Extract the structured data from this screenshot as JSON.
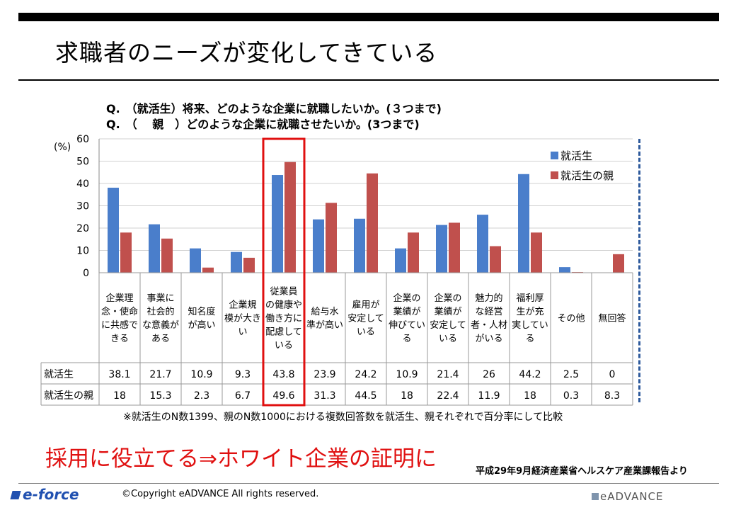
{
  "slide_title": "求職者のニーズが変化してきている",
  "question_1": "Q.　（就活生）将来、どのような企業に就職したいか。(３つまで)",
  "question_2": "Q.　（　 親　）どのような企業に就職させたいか。(3つまで)",
  "note": "※就活生のN数1399、親のN数1000における複数回答数を就活生、親それぞれで百分率にして比較",
  "callout": "採用に役立てる⇒ホワイト企業の証明に",
  "source": "平成29年9月経済産業省ヘルスケア産業課報告より",
  "copyright": "©Copyright  eADVANCE  All rights reserved.",
  "footer_logo_left": "e-force",
  "footer_logo_right": "eADVANCE",
  "colors": {
    "student": "#4a7ecb",
    "parent": "#c0504d",
    "highlight": "#e01010"
  },
  "chart_data": {
    "type": "bar",
    "ylabel": "(%)",
    "ylim": [
      0,
      60
    ],
    "yticks": [
      "0",
      "10",
      "20",
      "30",
      "40",
      "50",
      "60"
    ],
    "categories": [
      [
        "企業理",
        "念・使命",
        "に共感で",
        "きる"
      ],
      [
        "事業に",
        "社会的",
        "な意義が",
        "ある"
      ],
      [
        "知名度",
        "が高い"
      ],
      [
        "企業規",
        "模が大き",
        "い"
      ],
      [
        "従業員",
        "の健康や",
        "働き方に",
        "配慮して",
        "いる"
      ],
      [
        "給与水",
        "準が高い"
      ],
      [
        "雇用が",
        "安定して",
        "いる"
      ],
      [
        "企業の",
        "業績が",
        "伸びてい",
        "る"
      ],
      [
        "企業の",
        "業績が",
        "安定して",
        "いる"
      ],
      [
        "魅力的",
        "な経営",
        "者・人材",
        "がいる"
      ],
      [
        "福利厚",
        "生が充",
        "実してい",
        "る"
      ],
      [
        "その他"
      ],
      [
        "無回答"
      ]
    ],
    "series": [
      {
        "name": "就活生",
        "values": [
          38.1,
          21.7,
          10.9,
          9.3,
          43.8,
          23.9,
          24.2,
          10.9,
          21.4,
          26,
          44.2,
          2.5,
          0
        ],
        "labels": [
          "38.1",
          "21.7",
          "10.9",
          "9.3",
          "43.8",
          "23.9",
          "24.2",
          "10.9",
          "21.4",
          "26",
          "44.2",
          "2.5",
          "0"
        ]
      },
      {
        "name": "就活生の親",
        "values": [
          18,
          15.3,
          2.3,
          6.7,
          49.6,
          31.3,
          44.5,
          18,
          22.4,
          11.9,
          18,
          0.3,
          8.3
        ],
        "labels": [
          "18",
          "15.3",
          "2.3",
          "6.7",
          "49.6",
          "31.3",
          "44.5",
          "18",
          "22.4",
          "11.9",
          "18",
          "0.3",
          "8.3"
        ]
      }
    ],
    "legend_position": "top-right",
    "highlight_category_index": 4
  }
}
